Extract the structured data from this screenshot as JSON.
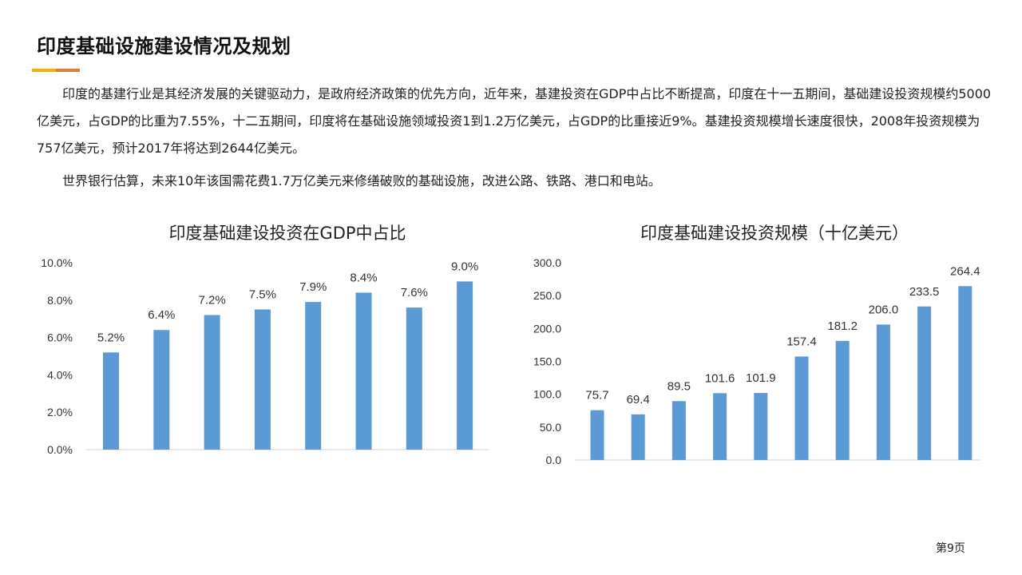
{
  "header": {
    "title": "印度基础设施建设情况及规划",
    "accent_colors": [
      "#f5b000",
      "#e07b39"
    ]
  },
  "paragraphs": [
    "印度的基建行业是其经济发展的关键驱动力，是政府经济政策的优先方向，近年来，基建投资在GDP中占比不断提高，印度在十一五期间，基础建设投资规模约5000亿美元，占GDP的比重为7.55%，十二五期间，印度将在基础设施领域投资1到1.2万亿美元，占GDP的比重接近9%。基建投资规模增长速度很快，2008年投资规模为757亿美元，预计2017年将达到2644亿美元。",
    "世界银行估算，未来10年该国需花费1.7万亿美元来修缮破败的基础设施，改进公路、铁路、港口和电站。"
  ],
  "chart_data": [
    {
      "type": "bar",
      "title": "印度基础建设投资在GDP中占比",
      "values": [
        5.2,
        6.4,
        7.2,
        7.5,
        7.9,
        8.4,
        7.6,
        9.0
      ],
      "labels": [
        "5.2%",
        "6.4%",
        "7.2%",
        "7.5%",
        "7.9%",
        "8.4%",
        "7.6%",
        "9.0%"
      ],
      "yticks": [
        "0.0%",
        "2.0%",
        "4.0%",
        "6.0%",
        "8.0%",
        "10.0%"
      ],
      "ylim": [
        0,
        10
      ],
      "color": "#5b9bd5",
      "grid": false
    },
    {
      "type": "bar",
      "title": "印度基础建设投资规模（十亿美元）",
      "values": [
        75.7,
        69.4,
        89.5,
        101.6,
        101.9,
        157.4,
        181.2,
        206.0,
        233.5,
        264.4
      ],
      "labels": [
        "75.7",
        "69.4",
        "89.5",
        "101.6",
        "101.9",
        "157.4",
        "181.2",
        "206.0",
        "233.5",
        "264.4"
      ],
      "yticks": [
        "0.0",
        "50.0",
        "100.0",
        "150.0",
        "200.0",
        "250.0",
        "300.0"
      ],
      "ylim": [
        0,
        300
      ],
      "color": "#5b9bd5",
      "grid": false
    }
  ],
  "footer": {
    "page": "第9页"
  }
}
